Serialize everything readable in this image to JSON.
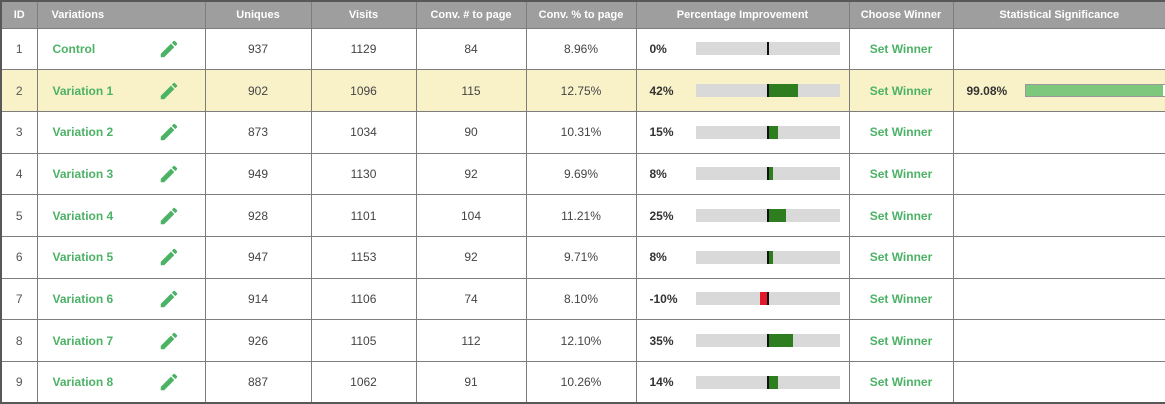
{
  "table": {
    "columns": [
      {
        "key": "id",
        "label": "ID"
      },
      {
        "key": "variations",
        "label": "Variations"
      },
      {
        "key": "uniques",
        "label": "Uniques"
      },
      {
        "key": "visits",
        "label": "Visits"
      },
      {
        "key": "conv_num",
        "label": "Conv. # to page"
      },
      {
        "key": "conv_pct",
        "label": "Conv. % to page"
      },
      {
        "key": "improvement",
        "label": "Percentage Improvement"
      },
      {
        "key": "choose_winner",
        "label": "Choose Winner"
      },
      {
        "key": "significance",
        "label": "Statistical Significance"
      }
    ],
    "set_winner_label": "Set Winner",
    "rows": [
      {
        "id": "1",
        "name": "Control",
        "uniques": "937",
        "visits": "1129",
        "conv_num": "84",
        "conv_pct": "8.96%",
        "improvement_label": "0%",
        "improvement_value": 0,
        "significance_label": "",
        "significance_value": null,
        "highlighted": false
      },
      {
        "id": "2",
        "name": "Variation 1",
        "uniques": "902",
        "visits": "1096",
        "conv_num": "115",
        "conv_pct": "12.75%",
        "improvement_label": "42%",
        "improvement_value": 42,
        "significance_label": "99.08%",
        "significance_value": 99.08,
        "highlighted": true
      },
      {
        "id": "3",
        "name": "Variation 2",
        "uniques": "873",
        "visits": "1034",
        "conv_num": "90",
        "conv_pct": "10.31%",
        "improvement_label": "15%",
        "improvement_value": 15,
        "significance_label": "",
        "significance_value": null,
        "highlighted": false
      },
      {
        "id": "4",
        "name": "Variation 3",
        "uniques": "949",
        "visits": "1130",
        "conv_num": "92",
        "conv_pct": "9.69%",
        "improvement_label": "8%",
        "improvement_value": 8,
        "significance_label": "",
        "significance_value": null,
        "highlighted": false
      },
      {
        "id": "5",
        "name": "Variation 4",
        "uniques": "928",
        "visits": "1101",
        "conv_num": "104",
        "conv_pct": "11.21%",
        "improvement_label": "25%",
        "improvement_value": 25,
        "significance_label": "",
        "significance_value": null,
        "highlighted": false
      },
      {
        "id": "6",
        "name": "Variation 5",
        "uniques": "947",
        "visits": "1153",
        "conv_num": "92",
        "conv_pct": "9.71%",
        "improvement_label": "8%",
        "improvement_value": 8,
        "significance_label": "",
        "significance_value": null,
        "highlighted": false
      },
      {
        "id": "7",
        "name": "Variation 6",
        "uniques": "914",
        "visits": "1106",
        "conv_num": "74",
        "conv_pct": "8.10%",
        "improvement_label": "-10%",
        "improvement_value": -10,
        "significance_label": "",
        "significance_value": null,
        "highlighted": false
      },
      {
        "id": "8",
        "name": "Variation 7",
        "uniques": "926",
        "visits": "1105",
        "conv_num": "112",
        "conv_pct": "12.10%",
        "improvement_label": "35%",
        "improvement_value": 35,
        "significance_label": "",
        "significance_value": null,
        "highlighted": false
      },
      {
        "id": "9",
        "name": "Variation 8",
        "uniques": "887",
        "visits": "1062",
        "conv_num": "91",
        "conv_pct": "10.26%",
        "improvement_label": "14%",
        "improvement_value": 14,
        "significance_label": "",
        "significance_value": null,
        "highlighted": false
      }
    ]
  },
  "colors": {
    "header_bg": "#9e9e9e",
    "header_text": "#ffffff",
    "accent_green": "#4cb266",
    "improvement_positive": "#2e7d1e",
    "improvement_negative": "#e0192b",
    "bar_track_gray": "#d9d9d9",
    "significance_fill": "#7dc87d",
    "highlight_row_bg": "#f9f2c9"
  },
  "icons": {
    "edit": "edit-pencil-icon"
  }
}
